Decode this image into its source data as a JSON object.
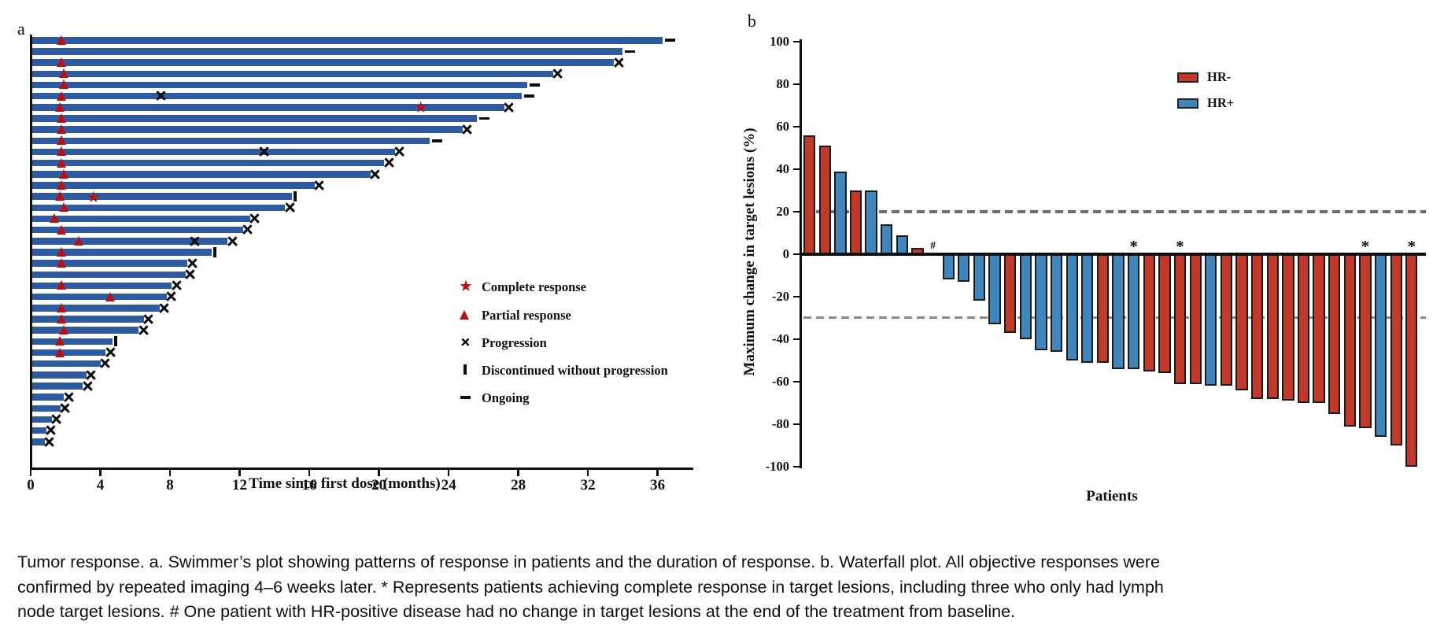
{
  "figure": {
    "panel_a_label": "a",
    "panel_b_label": "b",
    "caption": "Tumor response. a. Swimmer’s plot showing patterns of response in patients and the duration of response. b. Waterfall plot. All objective responses were confirmed by repeated imaging 4–6 weeks later. * Represents patients achieving complete response in target lesions, including three who only had lymph node target lesions. # One patient with HR-positive disease had no change in target lesions at the end of the treatment from baseline."
  },
  "colors": {
    "swimmer_bar": "#2e5b9f",
    "marker_red": "#b51218",
    "hr_negative": "#c0392b",
    "hr_positive": "#4086bd",
    "axis_black": "#0f0f0f",
    "ref_gray_20": "#6e6e6e",
    "ref_gray_30": "#8a8a8a"
  },
  "chart_data": [
    {
      "type": "swimmer-bar",
      "title": "",
      "xlabel": "Time since first dose (months)",
      "xticks": [
        0,
        4,
        8,
        12,
        16,
        20,
        24,
        28,
        32,
        36
      ],
      "xlim": [
        0,
        38
      ],
      "grid": false,
      "legend_position": "right-middle",
      "legend": [
        {
          "marker": "star",
          "label": "Complete response"
        },
        {
          "marker": "triangle",
          "label": "Partial response"
        },
        {
          "marker": "x",
          "label": "Progression"
        },
        {
          "marker": "tick",
          "label": "Discontinued without progression"
        },
        {
          "marker": "dash",
          "label": "Ongoing"
        }
      ],
      "rows": [
        {
          "duration": 36.3,
          "end_marker": "ongoing",
          "partial_response_at": 1.8
        },
        {
          "duration": 34.0,
          "end_marker": "ongoing"
        },
        {
          "duration": 33.5,
          "end_marker": "progression",
          "partial_response_at": 1.8
        },
        {
          "duration": 30.0,
          "end_marker": "progression",
          "partial_response_at": 1.9
        },
        {
          "duration": 28.5,
          "end_marker": "ongoing",
          "partial_response_at": 1.9
        },
        {
          "duration": 28.2,
          "end_marker": "ongoing",
          "partial_response_at": 1.8,
          "progression_at": 7.5
        },
        {
          "duration": 27.2,
          "end_marker": "progression",
          "partial_response_at": 1.7,
          "complete_response_at": 22.4
        },
        {
          "duration": 25.6,
          "end_marker": "ongoing",
          "partial_response_at": 1.8
        },
        {
          "duration": 24.8,
          "end_marker": "progression",
          "partial_response_at": 1.8
        },
        {
          "duration": 22.9,
          "end_marker": "ongoing",
          "partial_response_at": 1.8
        },
        {
          "duration": 20.9,
          "end_marker": "progression",
          "partial_response_at": 1.8,
          "progression_at": 13.4
        },
        {
          "duration": 20.3,
          "end_marker": "progression",
          "partial_response_at": 1.8
        },
        {
          "duration": 19.5,
          "end_marker": "progression",
          "partial_response_at": 1.9
        },
        {
          "duration": 16.3,
          "end_marker": "progression",
          "partial_response_at": 1.8
        },
        {
          "duration": 15.0,
          "end_marker": "discontinued",
          "partial_response_at": 1.7,
          "complete_response_at": 3.6
        },
        {
          "duration": 14.6,
          "end_marker": "progression",
          "partial_response_at": 1.9
        },
        {
          "duration": 12.6,
          "end_marker": "progression",
          "partial_response_at": 1.4
        },
        {
          "duration": 12.2,
          "end_marker": "progression",
          "partial_response_at": 1.8
        },
        {
          "duration": 11.3,
          "end_marker": "progression",
          "partial_response_at": 2.8,
          "progression_at": 9.4
        },
        {
          "duration": 10.4,
          "end_marker": "discontinued",
          "partial_response_at": 1.8
        },
        {
          "duration": 9.0,
          "end_marker": "progression",
          "partial_response_at": 1.8
        },
        {
          "duration": 8.9,
          "end_marker": "progression"
        },
        {
          "duration": 8.1,
          "end_marker": "progression",
          "partial_response_at": 1.8
        },
        {
          "duration": 7.8,
          "end_marker": "progression",
          "partial_response_at": 4.6
        },
        {
          "duration": 7.4,
          "end_marker": "progression",
          "partial_response_at": 1.8
        },
        {
          "duration": 6.5,
          "end_marker": "progression",
          "partial_response_at": 1.8
        },
        {
          "duration": 6.2,
          "end_marker": "progression",
          "partial_response_at": 1.9
        },
        {
          "duration": 4.7,
          "end_marker": "discontinued",
          "partial_response_at": 1.7
        },
        {
          "duration": 4.3,
          "end_marker": "progression",
          "partial_response_at": 1.7
        },
        {
          "duration": 4.0,
          "end_marker": "progression"
        },
        {
          "duration": 3.2,
          "end_marker": "progression"
        },
        {
          "duration": 3.0,
          "end_marker": "progression"
        },
        {
          "duration": 1.9,
          "end_marker": "progression"
        },
        {
          "duration": 1.7,
          "end_marker": "progression"
        },
        {
          "duration": 1.2,
          "end_marker": "progression"
        },
        {
          "duration": 0.9,
          "end_marker": "progression"
        },
        {
          "duration": 0.8,
          "end_marker": "progression"
        }
      ]
    },
    {
      "type": "bar",
      "title": "",
      "xlabel": "Patients",
      "ylabel": "Maximum change in target lesions (%)",
      "ylim": [
        -100,
        100
      ],
      "yticks": [
        100,
        80,
        60,
        40,
        20,
        0,
        -20,
        -40,
        -60,
        -80,
        -100
      ],
      "reference_lines": [
        20,
        -30
      ],
      "grid": false,
      "legend_position": "top-right",
      "legend": [
        {
          "label": "HR-",
          "group": "HR-"
        },
        {
          "label": "HR+",
          "group": "HR+"
        }
      ],
      "patients": [
        {
          "value": 56,
          "group": "HR-"
        },
        {
          "value": 51,
          "group": "HR-"
        },
        {
          "value": 39,
          "group": "HR+"
        },
        {
          "value": 30,
          "group": "HR-"
        },
        {
          "value": 30,
          "group": "HR+"
        },
        {
          "value": 14,
          "group": "HR+"
        },
        {
          "value": 9,
          "group": "HR+"
        },
        {
          "value": 3,
          "group": "HR-"
        },
        {
          "value": 0,
          "group": "HR+",
          "annotation": "#"
        },
        {
          "value": -12,
          "group": "HR+"
        },
        {
          "value": -13,
          "group": "HR+"
        },
        {
          "value": -22,
          "group": "HR+"
        },
        {
          "value": -33,
          "group": "HR+"
        },
        {
          "value": -37,
          "group": "HR-"
        },
        {
          "value": -40,
          "group": "HR+"
        },
        {
          "value": -45,
          "group": "HR+"
        },
        {
          "value": -46,
          "group": "HR+"
        },
        {
          "value": -50,
          "group": "HR+"
        },
        {
          "value": -51,
          "group": "HR+"
        },
        {
          "value": -51,
          "group": "HR-"
        },
        {
          "value": -54,
          "group": "HR+"
        },
        {
          "value": -54,
          "group": "HR+",
          "annotation": "*"
        },
        {
          "value": -55,
          "group": "HR-"
        },
        {
          "value": -56,
          "group": "HR-"
        },
        {
          "value": -61,
          "group": "HR-",
          "annotation": "*"
        },
        {
          "value": -61,
          "group": "HR-"
        },
        {
          "value": -62,
          "group": "HR+"
        },
        {
          "value": -62,
          "group": "HR-"
        },
        {
          "value": -64,
          "group": "HR-"
        },
        {
          "value": -68,
          "group": "HR-"
        },
        {
          "value": -68,
          "group": "HR-"
        },
        {
          "value": -69,
          "group": "HR-"
        },
        {
          "value": -70,
          "group": "HR-"
        },
        {
          "value": -70,
          "group": "HR-"
        },
        {
          "value": -75,
          "group": "HR-"
        },
        {
          "value": -81,
          "group": "HR-"
        },
        {
          "value": -82,
          "group": "HR-",
          "annotation": "*"
        },
        {
          "value": -86,
          "group": "HR+"
        },
        {
          "value": -90,
          "group": "HR-"
        },
        {
          "value": -100,
          "group": "HR-",
          "annotation": "*"
        }
      ]
    }
  ]
}
